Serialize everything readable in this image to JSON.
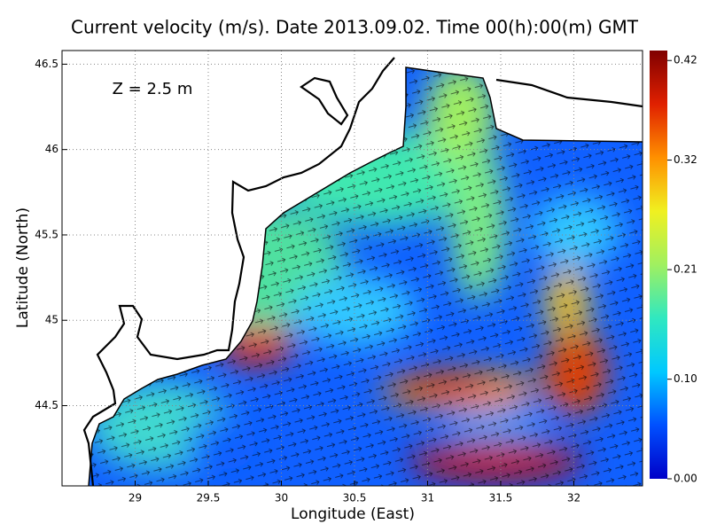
{
  "title": "Current velocity (m/s). Date 2013.09.02. Time 00(h):00(m) GMT",
  "annotation": "Z = 2.5 m",
  "x_label": "Longitude (East)",
  "y_label": "Latitude (North)",
  "xlim": [
    28.5,
    32.47
  ],
  "ylim": [
    44.03,
    46.58
  ],
  "xticks": [
    29,
    29.5,
    30,
    30.5,
    31,
    31.5,
    32
  ],
  "yticks": [
    44.5,
    45,
    45.5,
    46,
    46.5
  ],
  "grid": true,
  "colorbar": {
    "lim": [
      0,
      0.43
    ],
    "ticks": [
      {
        "value": 0,
        "label": "0.00"
      },
      {
        "value": 0.1,
        "label": "0.10"
      },
      0.21,
      0.32,
      0.42
    ],
    "colors": [
      "#0000c8",
      "#0050ff",
      "#00c8ff",
      "#30e8c0",
      "#a0f060",
      "#f0f020",
      "#ff9000",
      "#e02000",
      "#800000"
    ]
  }
}
